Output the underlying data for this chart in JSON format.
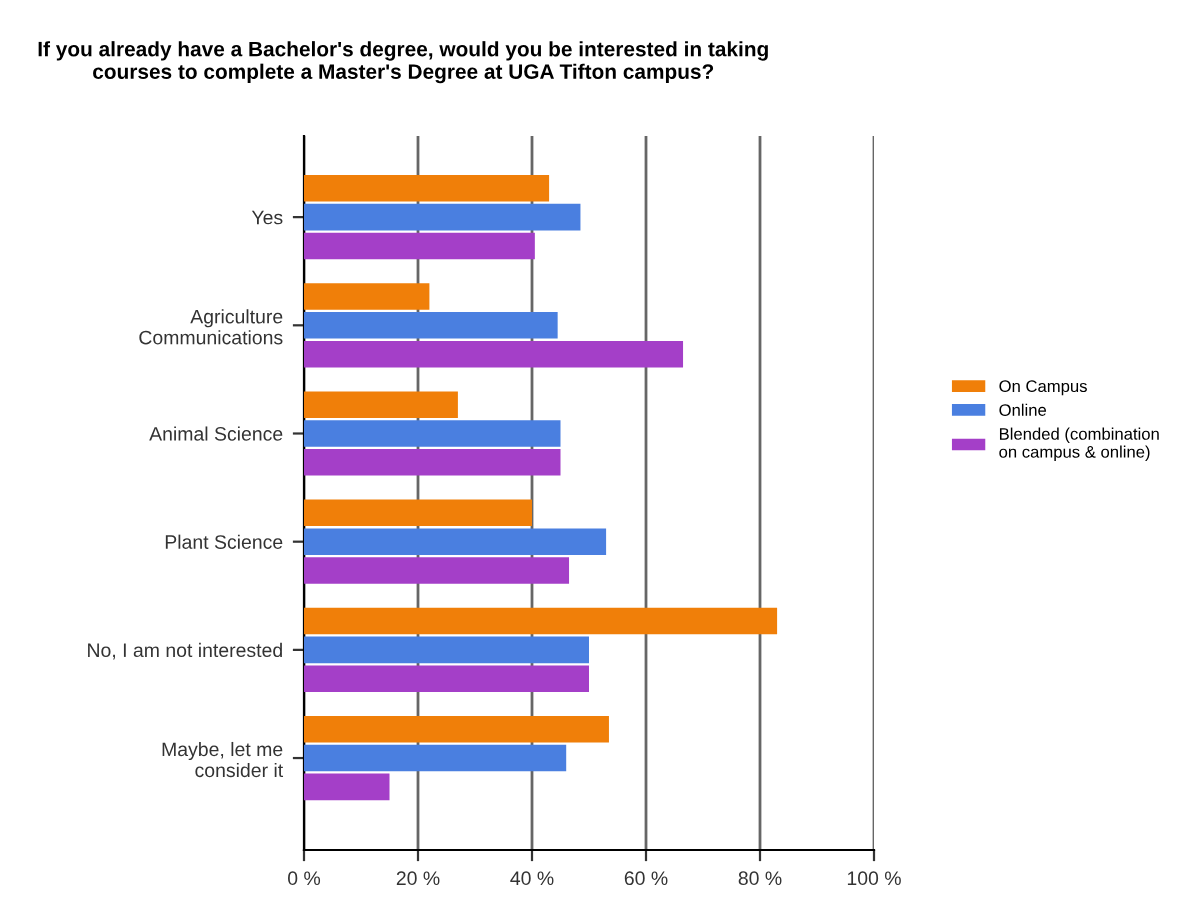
{
  "chart_data": {
    "type": "bar",
    "orientation": "horizontal",
    "title": "If you already have a Bachelor's degree, would you be interested in taking\ncourses to complete a Master's Degree at UGA Tifton campus?",
    "categories": [
      "Yes",
      "Agriculture\nCommunications",
      "Animal Science",
      "Plant Science",
      "No, I am not interested",
      "Maybe, let me\nconsider it"
    ],
    "series": [
      {
        "name": "On Campus",
        "color": "#f07f09",
        "values": [
          43,
          22,
          27,
          40,
          83,
          53.5
        ]
      },
      {
        "name": "Online",
        "color": "#4a7fe0",
        "values": [
          48.5,
          44.5,
          45,
          53,
          50,
          46
        ]
      },
      {
        "name": "Blended (combination\non campus & online)",
        "color": "#a43fc8",
        "values": [
          40.5,
          66.5,
          45,
          46.5,
          50,
          15
        ]
      }
    ],
    "xlim": [
      0,
      100
    ],
    "xticks": [
      {
        "value": 0,
        "label": "0 %"
      },
      {
        "value": 20,
        "label": "20 %"
      },
      {
        "value": 40,
        "label": "40 %"
      },
      {
        "value": 60,
        "label": "60 %"
      },
      {
        "value": 80,
        "label": "80 %"
      },
      {
        "value": 100,
        "label": "100 %"
      }
    ],
    "grid": "x",
    "legend": "right"
  }
}
